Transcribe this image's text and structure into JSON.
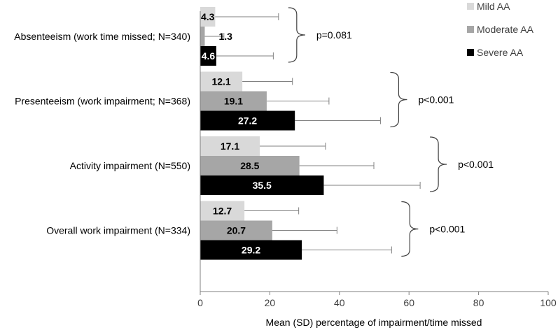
{
  "chart_data": {
    "type": "bar",
    "orientation": "horizontal",
    "categories": [
      "Absenteeism (work time missed; N=340)",
      "Presenteeism (work impairment; N=368)",
      "Activity impairment (N=550)",
      "Overall work impairment (N=334)"
    ],
    "series": [
      {
        "name": "Mild AA",
        "color": "#d9d9d9",
        "label_color": "#000000",
        "values": [
          4.3,
          12.1,
          17.1,
          12.7
        ],
        "sd_upper": [
          22.5,
          26.5,
          36.0,
          28.3
        ]
      },
      {
        "name": "Moderate AA",
        "color": "#a6a6a6",
        "label_color": "#000000",
        "values": [
          1.3,
          19.1,
          28.5,
          20.7
        ],
        "sd_upper": [
          6.8,
          37.0,
          49.9,
          39.3
        ]
      },
      {
        "name": "Severe AA",
        "color": "#000000",
        "label_color": "#ffffff",
        "values": [
          4.6,
          27.2,
          35.5,
          29.2
        ],
        "sd_upper": [
          21.0,
          51.8,
          63.2,
          55.0
        ]
      }
    ],
    "p_values": [
      "p=0.081",
      "p<0.001",
      "p<0.001",
      "p<0.001"
    ],
    "xlabel": "Mean (SD) percentage of impairment/time missed",
    "ylabel": "",
    "xlim": [
      0,
      100
    ],
    "xticks": [
      0,
      20,
      40,
      60,
      80,
      100
    ],
    "legend_position": "top-right",
    "grid": false
  }
}
